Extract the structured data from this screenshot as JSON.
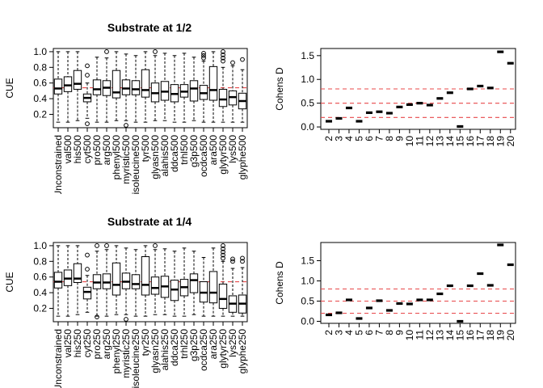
{
  "colors": {
    "box": "#000000",
    "median": "#000000",
    "ref_line": "#e8484a",
    "dashed_ref": "#e8484a"
  },
  "chart_data": [
    {
      "type": "box",
      "title": "Substrate at 1/2",
      "ylabel": "CUE",
      "ylim": [
        0.05,
        1.02
      ],
      "yticks": [
        "0.2",
        "0.4",
        "0.6",
        "0.8",
        "1.0"
      ],
      "ref_line": 0.54,
      "categories": [
        "Unconstrained",
        "val500",
        "his500",
        "cyt500",
        "pro500",
        "arg500",
        "phenyl500",
        "myristic500",
        "isoleucine500",
        "tyr500",
        "glyasn500",
        "alahis500",
        "ddca500",
        "trhl500",
        "g3p500",
        "ocdca500",
        "ara500",
        "glytyr500",
        "lys500",
        "glyphe500"
      ],
      "boxes": [
        {
          "min": 0.1,
          "q1": 0.46,
          "median": 0.53,
          "q3": 0.65,
          "max": 1.0,
          "outliers": []
        },
        {
          "min": 0.1,
          "q1": 0.49,
          "median": 0.57,
          "q3": 0.68,
          "max": 1.0,
          "outliers": []
        },
        {
          "min": 0.12,
          "q1": 0.52,
          "median": 0.59,
          "q3": 0.76,
          "max": 1.0,
          "outliers": []
        },
        {
          "min": 0.15,
          "q1": 0.36,
          "median": 0.41,
          "q3": 0.46,
          "max": 0.6,
          "outliers": [
            0.08,
            0.7,
            0.82
          ]
        },
        {
          "min": 0.1,
          "q1": 0.45,
          "median": 0.52,
          "q3": 0.64,
          "max": 0.93,
          "outliers": []
        },
        {
          "min": 0.1,
          "q1": 0.44,
          "median": 0.54,
          "q3": 0.63,
          "max": 0.92,
          "outliers": [
            1.0
          ]
        },
        {
          "min": 0.12,
          "q1": 0.41,
          "median": 0.48,
          "q3": 0.76,
          "max": 1.0,
          "outliers": []
        },
        {
          "min": 0.12,
          "q1": 0.45,
          "median": 0.53,
          "q3": 0.64,
          "max": 0.97,
          "outliers": [
            0.06
          ]
        },
        {
          "min": 0.1,
          "q1": 0.45,
          "median": 0.52,
          "q3": 0.63,
          "max": 0.95,
          "outliers": []
        },
        {
          "min": 0.1,
          "q1": 0.42,
          "median": 0.51,
          "q3": 0.77,
          "max": 1.0,
          "outliers": []
        },
        {
          "min": 0.12,
          "q1": 0.36,
          "median": 0.47,
          "q3": 0.6,
          "max": 0.95,
          "outliers": [
            1.0
          ]
        },
        {
          "min": 0.12,
          "q1": 0.38,
          "median": 0.49,
          "q3": 0.62,
          "max": 0.98,
          "outliers": []
        },
        {
          "min": 0.1,
          "q1": 0.36,
          "median": 0.46,
          "q3": 0.58,
          "max": 0.95,
          "outliers": []
        },
        {
          "min": 0.1,
          "q1": 0.42,
          "median": 0.49,
          "q3": 0.58,
          "max": 0.98,
          "outliers": []
        },
        {
          "min": 0.12,
          "q1": 0.37,
          "median": 0.53,
          "q3": 0.63,
          "max": 0.93,
          "outliers": []
        },
        {
          "min": 0.1,
          "q1": 0.39,
          "median": 0.47,
          "q3": 0.57,
          "max": 0.88,
          "outliers": [
            0.92,
            0.95,
            0.98
          ]
        },
        {
          "min": 0.1,
          "q1": 0.38,
          "median": 0.51,
          "q3": 0.81,
          "max": 1.0,
          "outliers": []
        },
        {
          "min": 0.1,
          "q1": 0.3,
          "median": 0.39,
          "q3": 0.52,
          "max": 0.8,
          "outliers": [
            0.88,
            0.92,
            0.96,
            1.0
          ]
        },
        {
          "min": 0.1,
          "q1": 0.32,
          "median": 0.42,
          "q3": 0.5,
          "max": 0.82,
          "outliers": [
            0.86
          ]
        },
        {
          "min": 0.1,
          "q1": 0.27,
          "median": 0.37,
          "q3": 0.47,
          "max": 0.77,
          "outliers": [
            0.9
          ]
        }
      ]
    },
    {
      "type": "scatter",
      "title": "",
      "ylabel": "Cohens D",
      "ylim": [
        -0.05,
        1.65
      ],
      "yticks": [
        "0.0",
        "0.5",
        "1.0",
        "1.5"
      ],
      "ref_lines": [
        0.2,
        0.5,
        0.8
      ],
      "x": [
        "2",
        "3",
        "4",
        "5",
        "6",
        "7",
        "8",
        "9",
        "10",
        "11",
        "12",
        "13",
        "14",
        "15",
        "16",
        "17",
        "18",
        "19",
        "20"
      ],
      "y": [
        0.12,
        0.18,
        0.4,
        0.12,
        0.3,
        0.32,
        0.29,
        0.42,
        0.47,
        0.5,
        0.46,
        0.6,
        0.72,
        0.01,
        0.8,
        0.86,
        0.82,
        1.58,
        1.34
      ]
    },
    {
      "type": "box",
      "title": "Substrate at 1/4",
      "ylabel": "CUE",
      "ylim": [
        0.05,
        1.02
      ],
      "yticks": [
        "0.2",
        "0.4",
        "0.6",
        "0.8",
        "1.0"
      ],
      "ref_line": 0.54,
      "categories": [
        "Unconstrained",
        "val250",
        "his250",
        "cyt250",
        "pro250",
        "arg250",
        "phenyl250",
        "myristic250",
        "isoleucine250",
        "tyr250",
        "glyasn250",
        "alahis250",
        "ddca250",
        "trhl250",
        "g3p250",
        "ocdca250",
        "ara250",
        "glytyr250",
        "lys250",
        "glyphe250"
      ],
      "boxes": [
        {
          "min": 0.1,
          "q1": 0.46,
          "median": 0.54,
          "q3": 0.66,
          "max": 1.0,
          "outliers": []
        },
        {
          "min": 0.1,
          "q1": 0.49,
          "median": 0.58,
          "q3": 0.69,
          "max": 1.0,
          "outliers": []
        },
        {
          "min": 0.12,
          "q1": 0.53,
          "median": 0.58,
          "q3": 0.77,
          "max": 1.0,
          "outliers": []
        },
        {
          "min": 0.15,
          "q1": 0.32,
          "median": 0.41,
          "q3": 0.47,
          "max": 0.62,
          "outliers": [
            0.7,
            0.88
          ]
        },
        {
          "min": 0.1,
          "q1": 0.45,
          "median": 0.53,
          "q3": 0.63,
          "max": 0.93,
          "outliers": [
            0.09,
            1.0
          ]
        },
        {
          "min": 0.1,
          "q1": 0.45,
          "median": 0.53,
          "q3": 0.64,
          "max": 0.95,
          "outliers": [
            1.0
          ]
        },
        {
          "min": 0.12,
          "q1": 0.37,
          "median": 0.5,
          "q3": 0.78,
          "max": 1.0,
          "outliers": []
        },
        {
          "min": 0.12,
          "q1": 0.45,
          "median": 0.54,
          "q3": 0.65,
          "max": 0.97,
          "outliers": [
            0.06
          ]
        },
        {
          "min": 0.1,
          "q1": 0.45,
          "median": 0.51,
          "q3": 0.63,
          "max": 0.95,
          "outliers": []
        },
        {
          "min": 0.1,
          "q1": 0.37,
          "median": 0.5,
          "q3": 0.86,
          "max": 1.0,
          "outliers": []
        },
        {
          "min": 0.12,
          "q1": 0.38,
          "median": 0.46,
          "q3": 0.6,
          "max": 0.95,
          "outliers": [
            1.0
          ]
        },
        {
          "min": 0.12,
          "q1": 0.34,
          "median": 0.48,
          "q3": 0.61,
          "max": 0.96,
          "outliers": []
        },
        {
          "min": 0.1,
          "q1": 0.3,
          "median": 0.44,
          "q3": 0.56,
          "max": 0.93,
          "outliers": []
        },
        {
          "min": 0.1,
          "q1": 0.36,
          "median": 0.47,
          "q3": 0.57,
          "max": 0.97,
          "outliers": []
        },
        {
          "min": 0.12,
          "q1": 0.4,
          "median": 0.56,
          "q3": 0.64,
          "max": 0.93,
          "outliers": []
        },
        {
          "min": 0.1,
          "q1": 0.28,
          "median": 0.4,
          "q3": 0.54,
          "max": 0.85,
          "outliers": []
        },
        {
          "min": 0.1,
          "q1": 0.27,
          "median": 0.4,
          "q3": 0.67,
          "max": 0.97,
          "outliers": []
        },
        {
          "min": 0.1,
          "q1": 0.2,
          "median": 0.32,
          "q3": 0.51,
          "max": 0.8,
          "outliers": [
            0.84,
            0.88,
            0.92,
            0.96,
            1.0
          ]
        },
        {
          "min": 0.1,
          "q1": 0.15,
          "median": 0.26,
          "q3": 0.36,
          "max": 0.71,
          "outliers": [
            0.8,
            0.83
          ]
        },
        {
          "min": 0.1,
          "q1": 0.14,
          "median": 0.26,
          "q3": 0.37,
          "max": 0.72,
          "outliers": [
            0.8,
            0.84
          ]
        }
      ]
    },
    {
      "type": "scatter",
      "title": "",
      "ylabel": "Cohens D",
      "ylim": [
        -0.05,
        1.95
      ],
      "yticks": [
        "0.0",
        "0.5",
        "1.0",
        "1.5"
      ],
      "ref_lines": [
        0.2,
        0.5,
        0.8
      ],
      "x": [
        "2",
        "3",
        "4",
        "5",
        "6",
        "7",
        "8",
        "9",
        "10",
        "11",
        "12",
        "13",
        "14",
        "15",
        "16",
        "17",
        "18",
        "19",
        "20"
      ],
      "y": [
        0.16,
        0.21,
        0.53,
        0.07,
        0.33,
        0.51,
        0.27,
        0.44,
        0.43,
        0.53,
        0.53,
        0.68,
        0.88,
        0.0,
        0.88,
        1.18,
        0.89,
        1.89,
        1.4
      ]
    }
  ]
}
